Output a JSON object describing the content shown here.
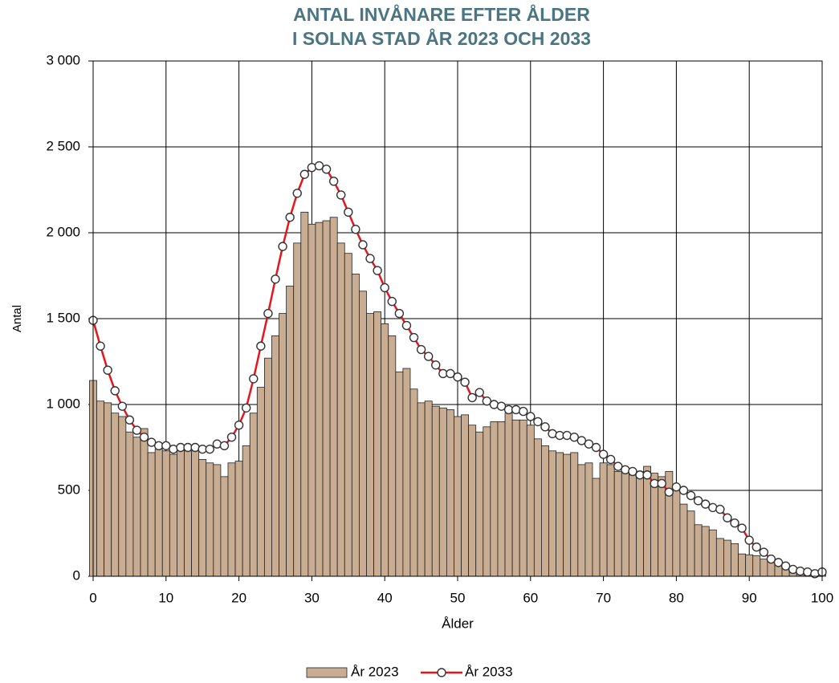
{
  "chart_data": {
    "type": "combo",
    "title": [
      "ANTAL INVÅNARE EFTER ÅLDER",
      "I SOLNA STAD ÅR 2023 OCH 2033"
    ],
    "x_label": "Ålder",
    "y_label": "Antal",
    "x": [
      0,
      1,
      2,
      3,
      4,
      5,
      6,
      7,
      8,
      9,
      10,
      11,
      12,
      13,
      14,
      15,
      16,
      17,
      18,
      19,
      20,
      21,
      22,
      23,
      24,
      25,
      26,
      27,
      28,
      29,
      30,
      31,
      32,
      33,
      34,
      35,
      36,
      37,
      38,
      39,
      40,
      41,
      42,
      43,
      44,
      45,
      46,
      47,
      48,
      49,
      50,
      51,
      52,
      53,
      54,
      55,
      56,
      57,
      58,
      59,
      60,
      61,
      62,
      63,
      64,
      65,
      66,
      67,
      68,
      69,
      70,
      71,
      72,
      73,
      74,
      75,
      76,
      77,
      78,
      79,
      80,
      81,
      82,
      83,
      84,
      85,
      86,
      87,
      88,
      89,
      90,
      91,
      92,
      93,
      94,
      95,
      96,
      97,
      98,
      99,
      100
    ],
    "series": [
      {
        "name": "År 2023",
        "type": "bar",
        "color": "#c8ad92",
        "values": [
          1140,
          1020,
          1010,
          950,
          930,
          840,
          810,
          860,
          720,
          740,
          730,
          710,
          740,
          730,
          730,
          680,
          660,
          650,
          580,
          660,
          670,
          760,
          950,
          1100,
          1270,
          1400,
          1530,
          1690,
          1940,
          2120,
          2050,
          2060,
          2070,
          2090,
          1940,
          1880,
          1760,
          1660,
          1530,
          1540,
          1470,
          1400,
          1190,
          1210,
          1090,
          1010,
          1020,
          990,
          980,
          970,
          930,
          940,
          880,
          840,
          870,
          900,
          900,
          950,
          910,
          910,
          880,
          800,
          760,
          730,
          720,
          710,
          720,
          650,
          660,
          570,
          660,
          650,
          610,
          620,
          590,
          610,
          640,
          600,
          580,
          610,
          520,
          420,
          380,
          300,
          290,
          270,
          220,
          210,
          190,
          130,
          125,
          120,
          100,
          90,
          70,
          50,
          40,
          30,
          20,
          15,
          20
        ]
      },
      {
        "name": "År 2033",
        "type": "line",
        "color": "#e8141b",
        "values": [
          1490,
          1340,
          1200,
          1080,
          990,
          910,
          850,
          810,
          780,
          760,
          760,
          740,
          750,
          750,
          750,
          740,
          740,
          770,
          760,
          810,
          880,
          980,
          1150,
          1340,
          1530,
          1730,
          1920,
          2090,
          2230,
          2340,
          2380,
          2390,
          2370,
          2300,
          2220,
          2120,
          2020,
          1930,
          1850,
          1780,
          1680,
          1600,
          1530,
          1460,
          1390,
          1320,
          1280,
          1230,
          1180,
          1180,
          1160,
          1130,
          1040,
          1070,
          1020,
          1000,
          990,
          970,
          970,
          960,
          930,
          900,
          870,
          830,
          820,
          820,
          810,
          790,
          770,
          750,
          710,
          680,
          640,
          620,
          610,
          590,
          590,
          540,
          540,
          490,
          520,
          500,
          470,
          440,
          420,
          400,
          390,
          340,
          310,
          280,
          210,
          170,
          140,
          100,
          80,
          60,
          40,
          30,
          25,
          15,
          25
        ]
      }
    ],
    "xlim": [
      0,
      100
    ],
    "xticks": [
      0,
      10,
      20,
      30,
      40,
      50,
      60,
      70,
      80,
      90,
      100
    ],
    "ylim": [
      0,
      3000
    ],
    "yticks": [
      0,
      500,
      {
        "value": 1000,
        "label": "1 000"
      },
      {
        "value": 1500,
        "label": "1 500"
      },
      {
        "value": 2000,
        "label": "2 000"
      },
      {
        "value": 2500,
        "label": "2 500"
      },
      {
        "value": 3000,
        "label": "3 000"
      }
    ],
    "grid": true,
    "legend": "bottom"
  }
}
